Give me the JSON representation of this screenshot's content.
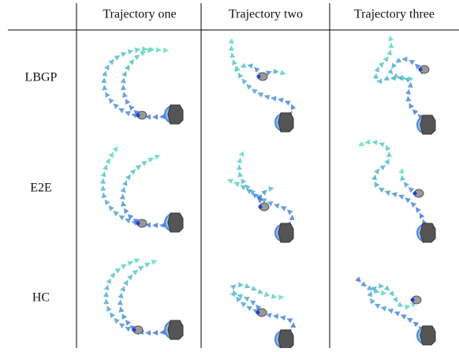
{
  "header": {
    "columns": [
      "Trajectory one",
      "Trajectory two",
      "Trajectory three"
    ]
  },
  "rows": [
    {
      "label": "LBGP"
    },
    {
      "label": "E2E"
    },
    {
      "label": "HC"
    }
  ]
}
